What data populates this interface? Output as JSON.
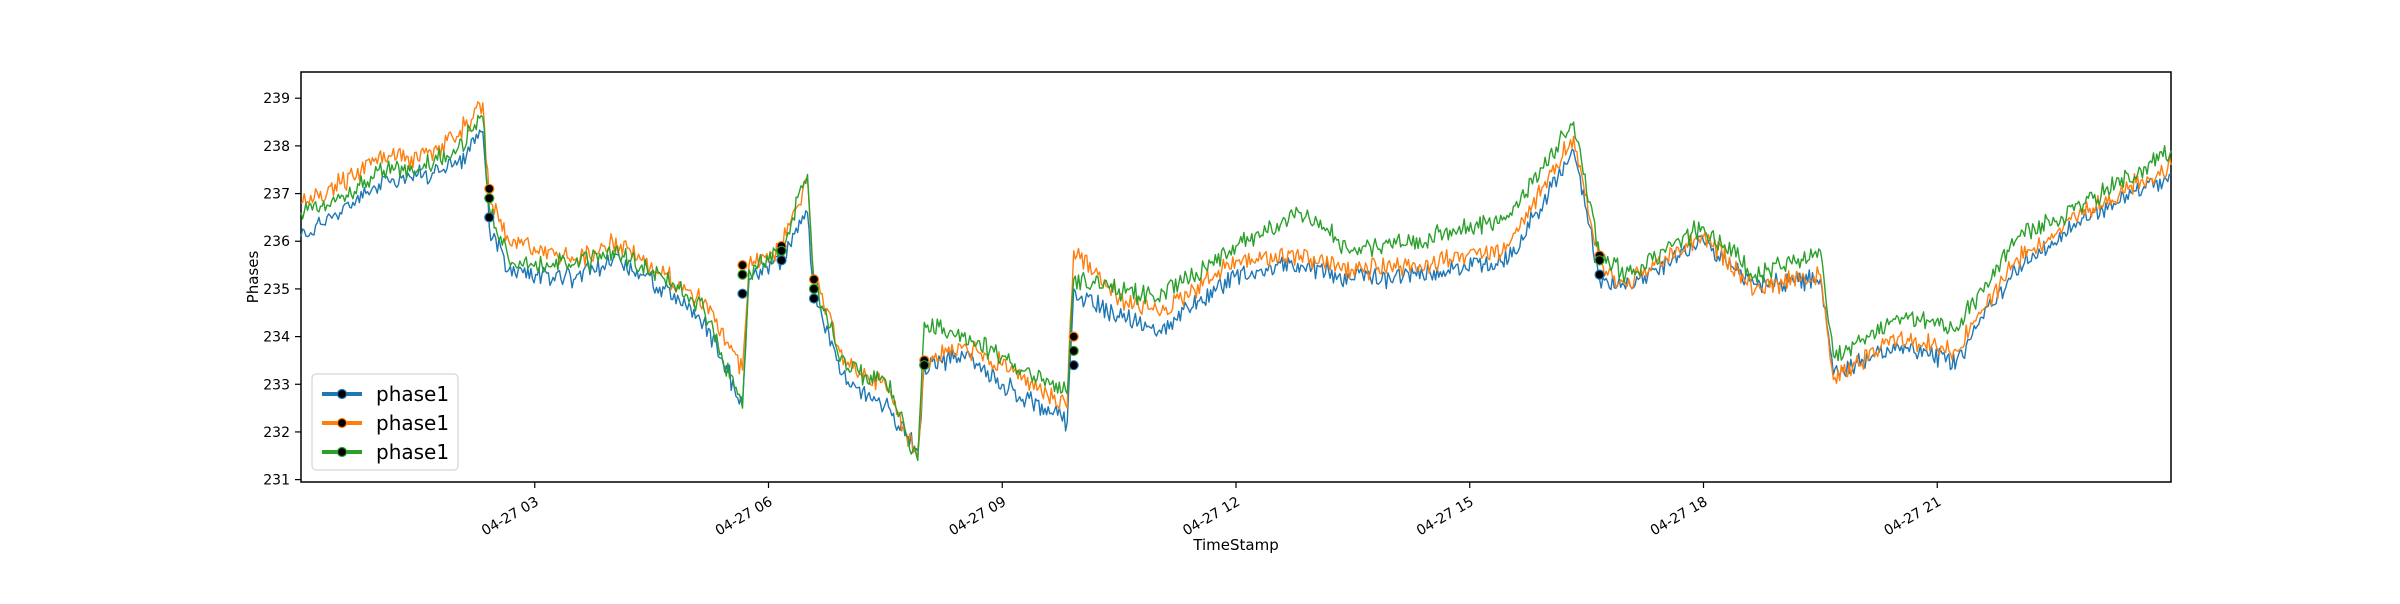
{
  "chart_data": {
    "type": "line",
    "title": "",
    "xlabel": "TimeStamp",
    "ylabel": "Phases",
    "x_range": [
      "04-27 00:00",
      "04-28 00:00"
    ],
    "ylim": [
      230.95,
      239.55
    ],
    "grid": false,
    "legend_position": "lower-left",
    "x_ticks": [
      {
        "label": "04-27 03",
        "x": "04-27 03:00"
      },
      {
        "label": "04-27 06",
        "x": "04-27 06:00"
      },
      {
        "label": "04-27 09",
        "x": "04-27 09:00"
      },
      {
        "label": "04-27 12",
        "x": "04-27 12:00"
      },
      {
        "label": "04-27 15",
        "x": "04-27 15:00"
      },
      {
        "label": "04-27 18",
        "x": "04-27 18:00"
      },
      {
        "label": "04-27 21",
        "x": "04-27 21:00"
      }
    ],
    "y_ticks": [
      "231",
      "232",
      "233",
      "234",
      "235",
      "236",
      "237",
      "238",
      "239"
    ],
    "series": [
      {
        "name": "phase1",
        "color": "#1f77b4",
        "points": [
          [
            "04-27 00:00",
            236.1
          ],
          [
            "04-27 00:30",
            236.6
          ],
          [
            "04-27 01:00",
            237.2
          ],
          [
            "04-27 01:30",
            237.4
          ],
          [
            "04-27 02:00",
            237.6
          ],
          [
            "04-27 02:20",
            238.3
          ],
          [
            "04-27 02:25",
            236.3
          ],
          [
            "04-27 02:40",
            235.4
          ],
          [
            "04-27 03:30",
            235.2
          ],
          [
            "04-27 04:00",
            235.6
          ],
          [
            "04-27 04:40",
            235.0
          ],
          [
            "04-27 05:10",
            234.3
          ],
          [
            "04-27 05:40",
            232.6
          ],
          [
            "04-27 05:45",
            235.2
          ],
          [
            "04-27 06:10",
            235.6
          ],
          [
            "04-27 06:30",
            236.6
          ],
          [
            "04-27 06:35",
            234.9
          ],
          [
            "04-27 07:00",
            233.0
          ],
          [
            "04-27 07:30",
            232.6
          ],
          [
            "04-27 07:55",
            231.6
          ],
          [
            "04-27 08:00",
            233.4
          ],
          [
            "04-27 08:30",
            233.6
          ],
          [
            "04-27 09:00",
            233.0
          ],
          [
            "04-27 09:50",
            232.2
          ],
          [
            "04-27 09:55",
            235.0
          ],
          [
            "04-27 10:30",
            234.4
          ],
          [
            "04-27 11:00",
            234.1
          ],
          [
            "04-27 12:00",
            235.3
          ],
          [
            "04-27 12:50",
            235.5
          ],
          [
            "04-27 13:30",
            235.2
          ],
          [
            "04-27 14:30",
            235.3
          ],
          [
            "04-27 15:30",
            235.6
          ],
          [
            "04-27 16:20",
            237.9
          ],
          [
            "04-27 16:40",
            235.2
          ],
          [
            "04-27 17:00",
            235.0
          ],
          [
            "04-27 18:00",
            236.0
          ],
          [
            "04-27 18:40",
            235.1
          ],
          [
            "04-27 19:30",
            235.2
          ],
          [
            "04-27 19:40",
            233.2
          ],
          [
            "04-27 20:30",
            233.8
          ],
          [
            "04-27 21:15",
            233.5
          ],
          [
            "04-27 22:00",
            235.4
          ],
          [
            "04-27 23:00",
            236.6
          ],
          [
            "04-28 00:00",
            237.4
          ]
        ],
        "markers": [
          [
            "04-27 02:25",
            236.5
          ],
          [
            "04-27 05:40",
            234.9
          ],
          [
            "04-27 06:10",
            235.6
          ],
          [
            "04-27 06:35",
            234.8
          ],
          [
            "04-27 08:00",
            233.4
          ],
          [
            "04-27 09:55",
            233.4
          ],
          [
            "04-27 16:40",
            235.3
          ]
        ]
      },
      {
        "name": "phase1",
        "color": "#ff7f0e",
        "points": [
          [
            "04-27 00:00",
            236.8
          ],
          [
            "04-27 00:30",
            237.2
          ],
          [
            "04-27 01:00",
            237.8
          ],
          [
            "04-27 01:30",
            237.7
          ],
          [
            "04-27 02:00",
            238.2
          ],
          [
            "04-27 02:20",
            238.9
          ],
          [
            "04-27 02:25",
            236.9
          ],
          [
            "04-27 02:40",
            236.0
          ],
          [
            "04-27 03:30",
            235.6
          ],
          [
            "04-27 04:00",
            236.0
          ],
          [
            "04-27 04:40",
            235.3
          ],
          [
            "04-27 05:10",
            234.7
          ],
          [
            "04-27 05:40",
            233.3
          ],
          [
            "04-27 05:45",
            235.5
          ],
          [
            "04-27 06:10",
            235.9
          ],
          [
            "04-27 06:30",
            237.3
          ],
          [
            "04-27 06:35",
            235.2
          ],
          [
            "04-27 07:00",
            233.4
          ],
          [
            "04-27 07:30",
            233.0
          ],
          [
            "04-27 07:55",
            231.5
          ],
          [
            "04-27 08:00",
            233.5
          ],
          [
            "04-27 08:30",
            233.8
          ],
          [
            "04-27 09:00",
            233.4
          ],
          [
            "04-27 09:50",
            232.5
          ],
          [
            "04-27 09:55",
            235.8
          ],
          [
            "04-27 10:30",
            234.8
          ],
          [
            "04-27 11:00",
            234.5
          ],
          [
            "04-27 12:00",
            235.6
          ],
          [
            "04-27 12:50",
            235.7
          ],
          [
            "04-27 13:30",
            235.4
          ],
          [
            "04-27 14:30",
            235.5
          ],
          [
            "04-27 15:30",
            235.9
          ],
          [
            "04-27 16:20",
            238.2
          ],
          [
            "04-27 16:40",
            235.5
          ],
          [
            "04-27 17:00",
            235.1
          ],
          [
            "04-27 18:00",
            236.1
          ],
          [
            "04-27 18:40",
            235.0
          ],
          [
            "04-27 19:30",
            235.3
          ],
          [
            "04-27 19:40",
            233.1
          ],
          [
            "04-27 20:30",
            234.0
          ],
          [
            "04-27 21:15",
            233.7
          ],
          [
            "04-27 22:00",
            235.6
          ],
          [
            "04-27 23:00",
            236.7
          ],
          [
            "04-28 00:00",
            237.6
          ]
        ],
        "markers": [
          [
            "04-27 02:25",
            237.1
          ],
          [
            "04-27 05:40",
            235.5
          ],
          [
            "04-27 06:10",
            235.9
          ],
          [
            "04-27 06:35",
            235.2
          ],
          [
            "04-27 08:00",
            233.5
          ],
          [
            "04-27 09:55",
            234.0
          ],
          [
            "04-27 16:40",
            235.7
          ]
        ]
      },
      {
        "name": "phase1",
        "color": "#2ca02c",
        "points": [
          [
            "04-27 00:00",
            236.6
          ],
          [
            "04-27 00:30",
            236.9
          ],
          [
            "04-27 01:00",
            237.5
          ],
          [
            "04-27 01:30",
            237.5
          ],
          [
            "04-27 02:00",
            237.9
          ],
          [
            "04-27 02:20",
            238.6
          ],
          [
            "04-27 02:25",
            236.7
          ],
          [
            "04-27 02:40",
            235.6
          ],
          [
            "04-27 03:30",
            235.5
          ],
          [
            "04-27 04:00",
            235.8
          ],
          [
            "04-27 04:40",
            235.2
          ],
          [
            "04-27 05:10",
            234.6
          ],
          [
            "04-27 05:40",
            232.5
          ],
          [
            "04-27 05:45",
            235.4
          ],
          [
            "04-27 06:10",
            235.8
          ],
          [
            "04-27 06:30",
            237.4
          ],
          [
            "04-27 06:35",
            235.1
          ],
          [
            "04-27 07:00",
            233.3
          ],
          [
            "04-27 07:30",
            233.1
          ],
          [
            "04-27 07:55",
            231.4
          ],
          [
            "04-27 08:00",
            234.3
          ],
          [
            "04-27 08:30",
            234.0
          ],
          [
            "04-27 09:00",
            233.6
          ],
          [
            "04-27 09:50",
            232.8
          ],
          [
            "04-27 09:55",
            235.2
          ],
          [
            "04-27 10:30",
            235.0
          ],
          [
            "04-27 11:00",
            234.8
          ],
          [
            "04-27 12:00",
            235.9
          ],
          [
            "04-27 12:50",
            236.6
          ],
          [
            "04-27 13:30",
            235.8
          ],
          [
            "04-27 14:30",
            236.1
          ],
          [
            "04-27 15:30",
            236.5
          ],
          [
            "04-27 16:20",
            238.5
          ],
          [
            "04-27 16:40",
            235.7
          ],
          [
            "04-27 17:00",
            235.3
          ],
          [
            "04-27 18:00",
            236.3
          ],
          [
            "04-27 18:40",
            235.3
          ],
          [
            "04-27 19:30",
            235.8
          ],
          [
            "04-27 19:40",
            233.6
          ],
          [
            "04-27 20:30",
            234.4
          ],
          [
            "04-27 21:15",
            234.2
          ],
          [
            "04-27 22:00",
            236.0
          ],
          [
            "04-27 23:00",
            236.9
          ],
          [
            "04-28 00:00",
            237.9
          ]
        ],
        "markers": [
          [
            "04-27 02:25",
            236.9
          ],
          [
            "04-27 05:40",
            235.3
          ],
          [
            "04-27 06:10",
            235.8
          ],
          [
            "04-27 06:35",
            235.0
          ],
          [
            "04-27 08:00",
            233.4
          ],
          [
            "04-27 09:55",
            233.7
          ],
          [
            "04-27 16:40",
            235.6
          ]
        ]
      }
    ]
  }
}
